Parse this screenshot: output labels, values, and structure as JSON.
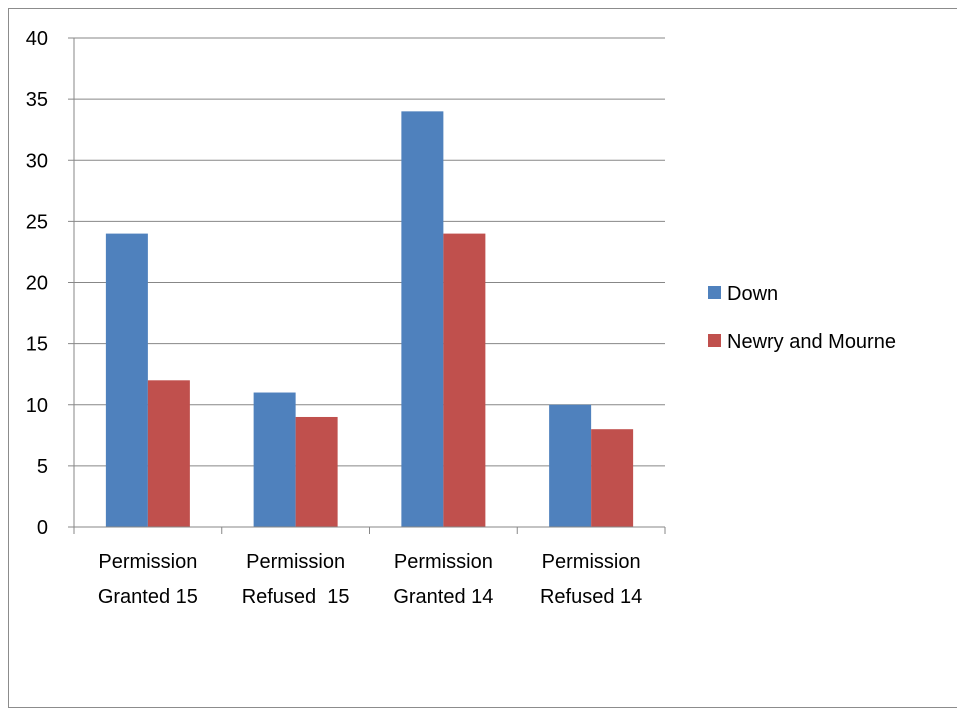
{
  "chart_data": {
    "type": "bar",
    "categories": [
      [
        "Permission",
        "Granted 15"
      ],
      [
        "Permission",
        "Refused  15"
      ],
      [
        "Permission",
        "Granted 14"
      ],
      [
        "Permission",
        "Refused 14"
      ]
    ],
    "series": [
      {
        "name": "Down",
        "color": "#4f81bd",
        "values": [
          24,
          11,
          34,
          10
        ]
      },
      {
        "name": "Newry and Mourne",
        "color": "#c0504d",
        "values": [
          12,
          9,
          24,
          8
        ]
      }
    ],
    "title": "",
    "xlabel": "",
    "ylabel": "",
    "ylim": [
      0,
      40
    ],
    "yticks": [
      0,
      5,
      10,
      15,
      20,
      25,
      30,
      35,
      40
    ],
    "grid": true,
    "legend_position": "right"
  }
}
